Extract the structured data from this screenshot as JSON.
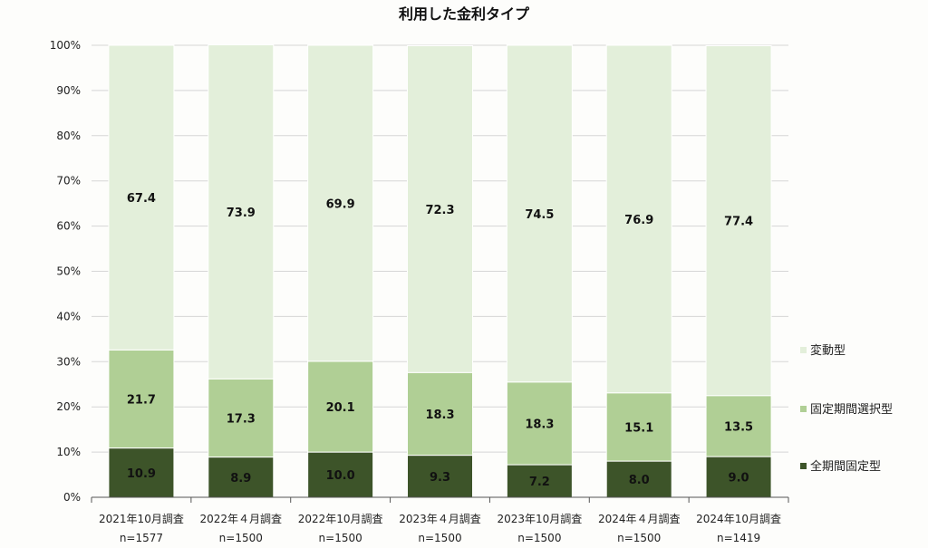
{
  "chart_data": {
    "type": "bar",
    "stacked": true,
    "title": "利用した金利タイプ",
    "categories": [
      "2021年10月調査",
      "2022年４月調査",
      "2022年10月調査",
      "2023年４月調査",
      "2023年10月調査",
      "2024年４月調査",
      "2024年10月調査"
    ],
    "sample_sizes": [
      "n=1577",
      "n=1500",
      "n=1500",
      "n=1500",
      "n=1500",
      "n=1500",
      "n=1419"
    ],
    "series": [
      {
        "name": "全期間固定型",
        "color": "#3d5429",
        "values": [
          10.9,
          8.9,
          10.0,
          9.3,
          7.2,
          8.0,
          9.0
        ],
        "labels": [
          "10.9",
          "8.9",
          "10.0",
          "9.3",
          "7.2",
          "8.0",
          "9.0"
        ]
      },
      {
        "name": "固定期間選択型",
        "color": "#b0cf95",
        "values": [
          21.7,
          17.3,
          20.1,
          18.3,
          18.3,
          15.1,
          13.5
        ],
        "labels": [
          "21.7",
          "17.3",
          "20.1",
          "18.3",
          "18.3",
          "15.1",
          "13.5"
        ]
      },
      {
        "name": "変動型",
        "color": "#e3efda",
        "values": [
          67.4,
          73.9,
          69.9,
          72.3,
          74.5,
          76.9,
          77.4
        ],
        "labels": [
          "67.4",
          "73.9",
          "69.9",
          "72.3",
          "74.5",
          "76.9",
          "77.4"
        ]
      }
    ],
    "ylim": [
      0,
      100
    ],
    "y_ticks": [
      "0%",
      "10%",
      "20%",
      "30%",
      "40%",
      "50%",
      "60%",
      "70%",
      "80%",
      "90%",
      "100%"
    ],
    "grid": true,
    "legend": {
      "position": "right",
      "order": [
        "変動型",
        "固定期間選択型",
        "全期間固定型"
      ]
    }
  }
}
